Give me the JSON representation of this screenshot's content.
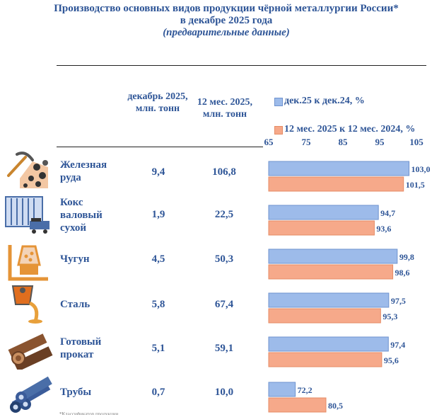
{
  "title": {
    "line1": "Производство основных видов продукции чёрной металлургии России*",
    "line2": "в декабре 2025 года",
    "line3": "(предварительные данные)"
  },
  "columns": {
    "dec": "декабрь 2025, млн. тонн",
    "year": "12 мес. 2025, млн. тонн"
  },
  "colors": {
    "dec": "#9dbbea",
    "year": "#f6a98a",
    "text": "#2e5597"
  },
  "rows": [
    {
      "name": "Железная руда",
      "dec": "9,4",
      "year": "106,8",
      "icon": "ore-pickaxe-icon"
    },
    {
      "name": "Кокс валовый сухой",
      "dec": "1,9",
      "year": "22,5",
      "icon": "coke-oven-icon"
    },
    {
      "name": "Чугун",
      "dec": "4,5",
      "year": "50,3",
      "icon": "blast-furnace-icon"
    },
    {
      "name": "Сталь",
      "dec": "5,8",
      "year": "67,4",
      "icon": "steel-ladle-icon"
    },
    {
      "name": "Готовый прокат",
      "dec": "5,1",
      "year": "59,1",
      "icon": "rolled-steel-icon"
    },
    {
      "name": "Трубы",
      "dec": "0,7",
      "year": "10,0",
      "icon": "pipes-icon"
    }
  ],
  "chart_data": {
    "type": "bar",
    "orientation": "horizontal",
    "categories": [
      "Железная руда",
      "Кокс валовый сухой",
      "Чугун",
      "Сталь",
      "Готовый прокат",
      "Трубы"
    ],
    "series": [
      {
        "name": "дек.25 к дек.24, %",
        "values": [
          103.0,
          94.7,
          99.8,
          97.5,
          97.4,
          72.2
        ],
        "labels": [
          "103,0",
          "94,7",
          "99,8",
          "97,5",
          "97,4",
          "72,2"
        ]
      },
      {
        "name": "12 мес. 2025 к 12 мес. 2024, %",
        "values": [
          101.5,
          93.6,
          98.6,
          95.3,
          95.6,
          80.5
        ],
        "labels": [
          "101,5",
          "93,6",
          "98,6",
          "95,3",
          "95,6",
          "80,5"
        ]
      }
    ],
    "xlim": [
      65,
      105
    ],
    "ticks": [
      65,
      75,
      85,
      95,
      105
    ],
    "legend": "top-right"
  },
  "footnote": "*Классификатор продукции"
}
